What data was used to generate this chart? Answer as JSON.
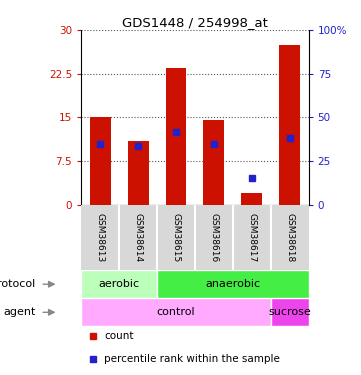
{
  "title": "GDS1448 / 254998_at",
  "samples": [
    "GSM38613",
    "GSM38614",
    "GSM38615",
    "GSM38616",
    "GSM38617",
    "GSM38618"
  ],
  "count_values": [
    15.0,
    11.0,
    23.5,
    14.5,
    2.0,
    27.5
  ],
  "percentile_values": [
    10.5,
    10.0,
    12.5,
    10.5,
    4.5,
    11.5
  ],
  "ylim_left": [
    0,
    30
  ],
  "ylim_right": [
    0,
    100
  ],
  "yticks_left": [
    0,
    7.5,
    15,
    22.5,
    30
  ],
  "yticks_right": [
    0,
    25,
    50,
    75,
    100
  ],
  "yticklabels_left": [
    "0",
    "7.5",
    "15",
    "22.5",
    "30"
  ],
  "yticklabels_right": [
    "0",
    "25",
    "50",
    "75",
    "100%"
  ],
  "bar_color": "#cc1100",
  "percentile_color": "#2222cc",
  "protocol_labels": [
    {
      "text": "aerobic",
      "start": 0,
      "end": 2,
      "color": "#bbffbb"
    },
    {
      "text": "anaerobic",
      "start": 2,
      "end": 6,
      "color": "#44ee44"
    }
  ],
  "agent_labels": [
    {
      "text": "control",
      "start": 0,
      "end": 5,
      "color": "#ffaaff"
    },
    {
      "text": "sucrose",
      "start": 5,
      "end": 6,
      "color": "#ee44ee"
    }
  ],
  "protocol_row_label": "protocol",
  "agent_row_label": "agent",
  "legend_count_label": "count",
  "legend_percentile_label": "percentile rank within the sample",
  "bar_color_left": "#cc1100",
  "tick_color_right": "#2222cc",
  "bar_width": 0.55
}
